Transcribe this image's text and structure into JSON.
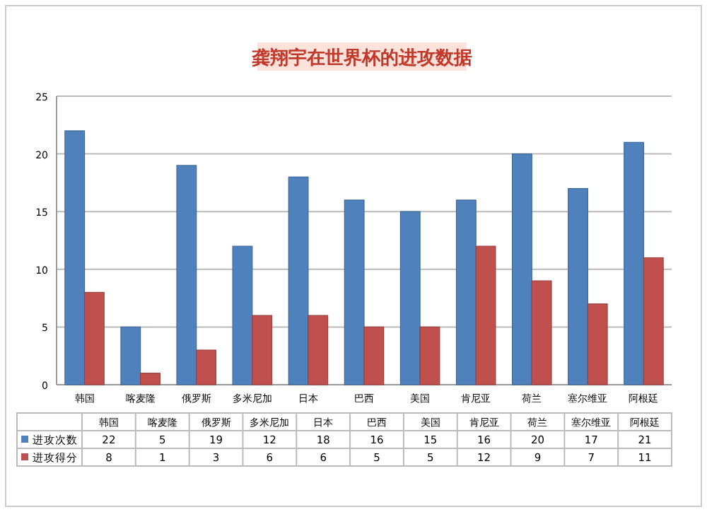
{
  "chart_data": {
    "type": "bar",
    "title": "龚翔宇在世界杯的进攻数据",
    "categories": [
      "韩国",
      "喀麦隆",
      "俄罗斯",
      "多米尼加",
      "日本",
      "巴西",
      "美国",
      "肯尼亚",
      "荷兰",
      "塞尔维亚",
      "阿根廷"
    ],
    "series": [
      {
        "name": "进攻次数",
        "color": "#4f81bd",
        "values": [
          22,
          5,
          19,
          12,
          18,
          16,
          15,
          16,
          20,
          17,
          21
        ]
      },
      {
        "name": "进攻得分",
        "color": "#c0504d",
        "values": [
          8,
          1,
          3,
          6,
          6,
          5,
          5,
          12,
          9,
          7,
          11
        ]
      }
    ],
    "ylim": [
      0,
      25
    ],
    "yticks": [
      0,
      5,
      10,
      15,
      20,
      25
    ],
    "grid": "y",
    "legend": "bottom",
    "data_labels": true
  }
}
